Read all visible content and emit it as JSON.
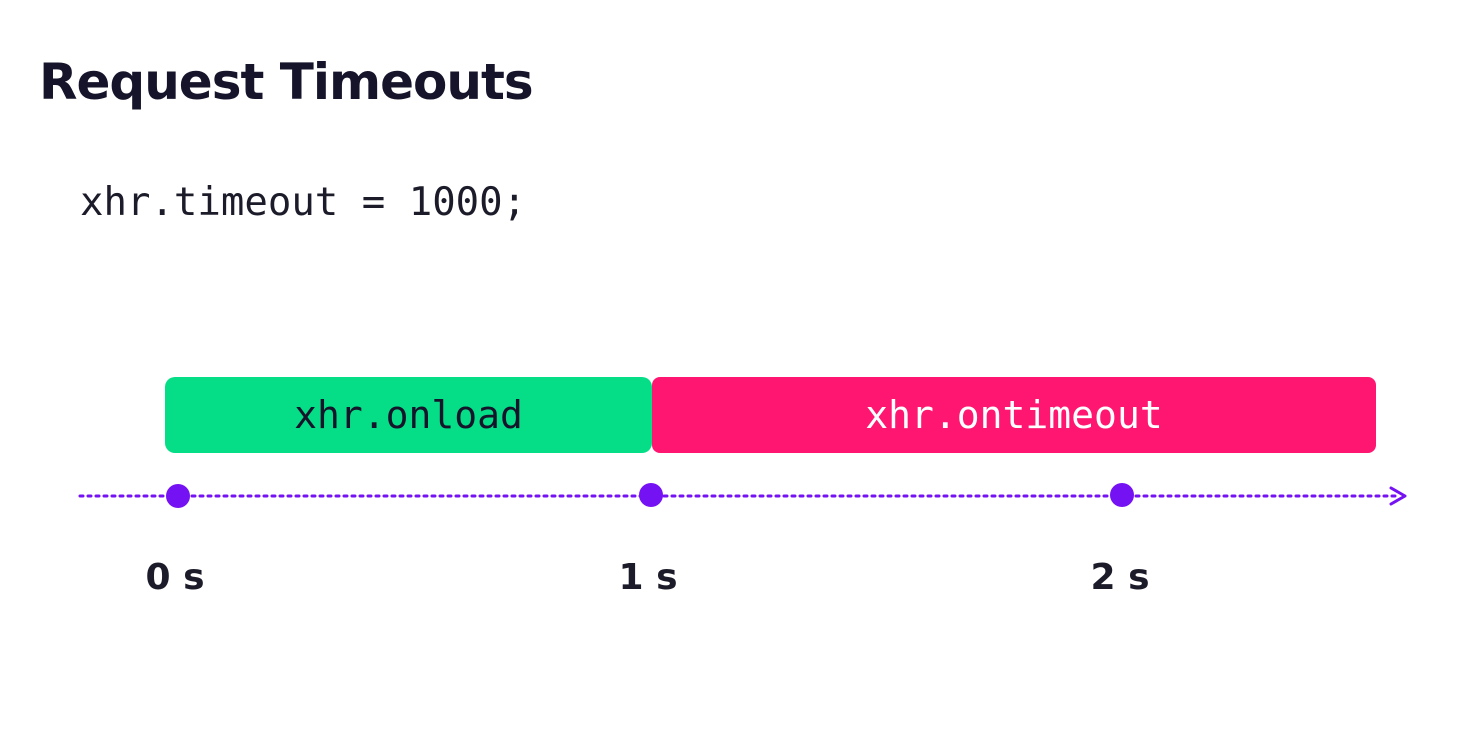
{
  "title": "Request Timeouts",
  "code": "xhr.timeout = 1000;",
  "events": [
    {
      "label": "xhr.onload",
      "start": 0,
      "end": 1,
      "color": "#06DD87"
    },
    {
      "label": "xhr.ontimeout",
      "start": 1,
      "end": 2.5,
      "color": "#FF1670"
    }
  ],
  "timeline": {
    "color": "#7512F3",
    "ticks": [
      {
        "value": 0,
        "label": "0 s"
      },
      {
        "value": 1,
        "label": "1 s"
      },
      {
        "value": 2,
        "label": "2 s"
      }
    ]
  }
}
